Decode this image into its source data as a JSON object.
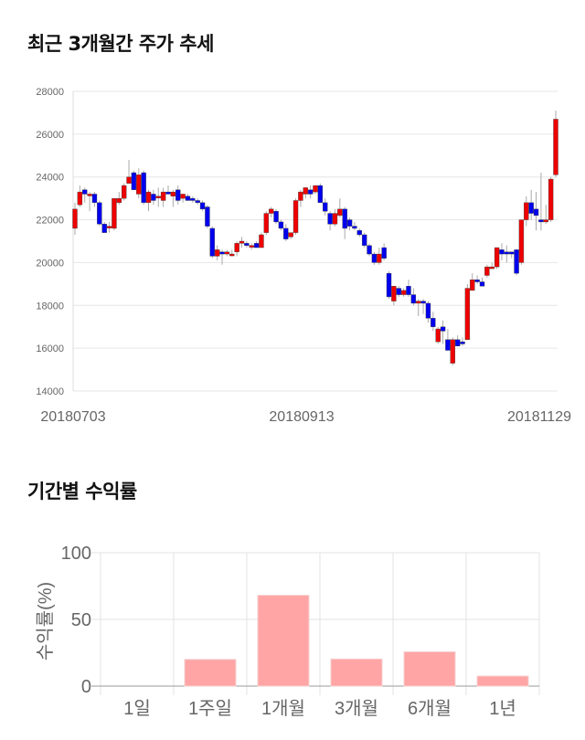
{
  "sections": {
    "price_title": "최근 3개월간 주가 추세",
    "return_title": "기간별 수익률"
  },
  "chart_data": [
    {
      "type": "candlestick",
      "title": "최근 3개월간 주가 추세",
      "ylim": [
        14000,
        28000
      ],
      "yticks": [
        "14000",
        "16000",
        "18000",
        "20000",
        "22000",
        "24000",
        "26000",
        "28000"
      ],
      "xtick_labels": [
        "20180703",
        "20180913",
        "20181129"
      ],
      "colors": {
        "up": "#ee0000",
        "down": "#0000ee"
      },
      "ohlc": [
        [
          21600,
          22800,
          21300,
          22500
        ],
        [
          22700,
          23600,
          22600,
          23300
        ],
        [
          23400,
          23500,
          22800,
          23200
        ],
        [
          23200,
          23300,
          22400,
          23200
        ],
        [
          23200,
          23300,
          22600,
          22800
        ],
        [
          22800,
          22900,
          21700,
          21800
        ],
        [
          21800,
          21900,
          21400,
          21400
        ],
        [
          21700,
          21900,
          21400,
          21700
        ],
        [
          21600,
          23000,
          21500,
          23000
        ],
        [
          22800,
          23300,
          22700,
          23000
        ],
        [
          23000,
          23700,
          22900,
          23600
        ],
        [
          23700,
          24800,
          23700,
          24000
        ],
        [
          24200,
          24300,
          23400,
          23400
        ],
        [
          23200,
          24400,
          23000,
          24100
        ],
        [
          24200,
          24300,
          22700,
          22800
        ],
        [
          22800,
          23400,
          22400,
          23300
        ],
        [
          23200,
          23400,
          22700,
          22900
        ],
        [
          23100,
          23500,
          22600,
          23100
        ],
        [
          22900,
          23500,
          22600,
          23300
        ],
        [
          23300,
          23600,
          23200,
          23200
        ],
        [
          23100,
          23400,
          22600,
          23300
        ],
        [
          23400,
          23600,
          22700,
          22900
        ],
        [
          23000,
          23200,
          22800,
          23200
        ],
        [
          23100,
          23200,
          22900,
          22900
        ],
        [
          23000,
          23100,
          22800,
          22900
        ],
        [
          22900,
          23000,
          22700,
          22800
        ],
        [
          22800,
          22900,
          22400,
          22500
        ],
        [
          22600,
          22700,
          21600,
          21700
        ],
        [
          21600,
          21700,
          20200,
          20300
        ],
        [
          20300,
          20800,
          20100,
          20600
        ],
        [
          20500,
          20600,
          19900,
          20400
        ],
        [
          20400,
          20600,
          20300,
          20500
        ],
        [
          20400,
          20600,
          20300,
          20400
        ],
        [
          20500,
          21000,
          20300,
          20900
        ],
        [
          20900,
          21200,
          20700,
          21000
        ],
        [
          20900,
          21000,
          20700,
          20800
        ],
        [
          20800,
          20900,
          20600,
          20800
        ],
        [
          20900,
          21000,
          20700,
          20700
        ],
        [
          20700,
          21400,
          20700,
          21300
        ],
        [
          21400,
          22400,
          21300,
          22300
        ],
        [
          22300,
          22600,
          22100,
          22500
        ],
        [
          22400,
          22500,
          21800,
          21900
        ],
        [
          21900,
          22000,
          21500,
          21600
        ],
        [
          21600,
          21800,
          21000,
          21100
        ],
        [
          21200,
          21400,
          21100,
          21400
        ],
        [
          21400,
          23000,
          21300,
          22900
        ],
        [
          22900,
          23400,
          22600,
          23300
        ],
        [
          23200,
          23500,
          23000,
          23500
        ],
        [
          23400,
          23600,
          23000,
          23200
        ],
        [
          23300,
          23600,
          23200,
          23600
        ],
        [
          23600,
          23700,
          22800,
          22800
        ],
        [
          22800,
          23000,
          22200,
          22400
        ],
        [
          22300,
          22400,
          21500,
          21800
        ],
        [
          21800,
          22500,
          21700,
          22300
        ],
        [
          22200,
          23000,
          22100,
          22500
        ],
        [
          22500,
          22600,
          21100,
          21600
        ],
        [
          22000,
          22100,
          21500,
          21700
        ],
        [
          21700,
          21900,
          21500,
          21600
        ],
        [
          21500,
          21600,
          21200,
          21300
        ],
        [
          21300,
          21400,
          20700,
          20800
        ],
        [
          20800,
          20900,
          20300,
          20400
        ],
        [
          20400,
          20500,
          19900,
          20000
        ],
        [
          20000,
          20700,
          19900,
          20400
        ],
        [
          20700,
          20900,
          20100,
          20200
        ],
        [
          19500,
          19600,
          18300,
          18400
        ],
        [
          18200,
          18900,
          18000,
          18900
        ],
        [
          18800,
          18900,
          18400,
          18500
        ],
        [
          18500,
          18800,
          18400,
          18700
        ],
        [
          18900,
          19200,
          18400,
          18500
        ],
        [
          18500,
          18800,
          18000,
          18100
        ],
        [
          18100,
          18300,
          17500,
          18200
        ],
        [
          18200,
          18300,
          17600,
          18100
        ],
        [
          18100,
          18200,
          17200,
          17400
        ],
        [
          17400,
          17700,
          16800,
          17000
        ],
        [
          16300,
          17000,
          16200,
          16900
        ],
        [
          17000,
          17300,
          16200,
          16800
        ],
        [
          16400,
          16900,
          15900,
          15900
        ],
        [
          15300,
          16500,
          15200,
          16400
        ],
        [
          16400,
          16600,
          16100,
          16100
        ],
        [
          16300,
          16500,
          16100,
          16200
        ],
        [
          16400,
          19000,
          16400,
          18800
        ],
        [
          18700,
          19500,
          18700,
          19200
        ],
        [
          19200,
          19400,
          19000,
          19100
        ],
        [
          19100,
          19300,
          18900,
          18900
        ],
        [
          19400,
          19900,
          19300,
          19800
        ],
        [
          19800,
          20000,
          19700,
          19800
        ],
        [
          19800,
          20700,
          19700,
          20700
        ],
        [
          20600,
          20900,
          20100,
          20400
        ],
        [
          20500,
          20800,
          20000,
          20400
        ],
        [
          20500,
          20500,
          20200,
          20400
        ],
        [
          20600,
          20600,
          19400,
          19500
        ],
        [
          20000,
          22000,
          19900,
          22000
        ],
        [
          22000,
          23100,
          21700,
          22800
        ],
        [
          22800,
          23400,
          22000,
          22300
        ],
        [
          22500,
          23300,
          21500,
          22200
        ],
        [
          22000,
          24200,
          21500,
          21900
        ],
        [
          21900,
          22700,
          21800,
          22000
        ],
        [
          22000,
          24000,
          21900,
          23900
        ],
        [
          24100,
          27100,
          24000,
          26700
        ]
      ]
    },
    {
      "type": "bar",
      "title": "기간별 수익률",
      "ylabel": "수익률(%)",
      "ylim": [
        0,
        100
      ],
      "yticks": [
        "0",
        "50",
        "100"
      ],
      "categories": [
        "1일",
        "1주일",
        "1개월",
        "3개월",
        "6개월",
        "1년"
      ],
      "values": [
        0,
        20.0,
        68.1,
        20.3,
        25.7,
        7.5
      ],
      "color": "#ffa5a5"
    }
  ]
}
